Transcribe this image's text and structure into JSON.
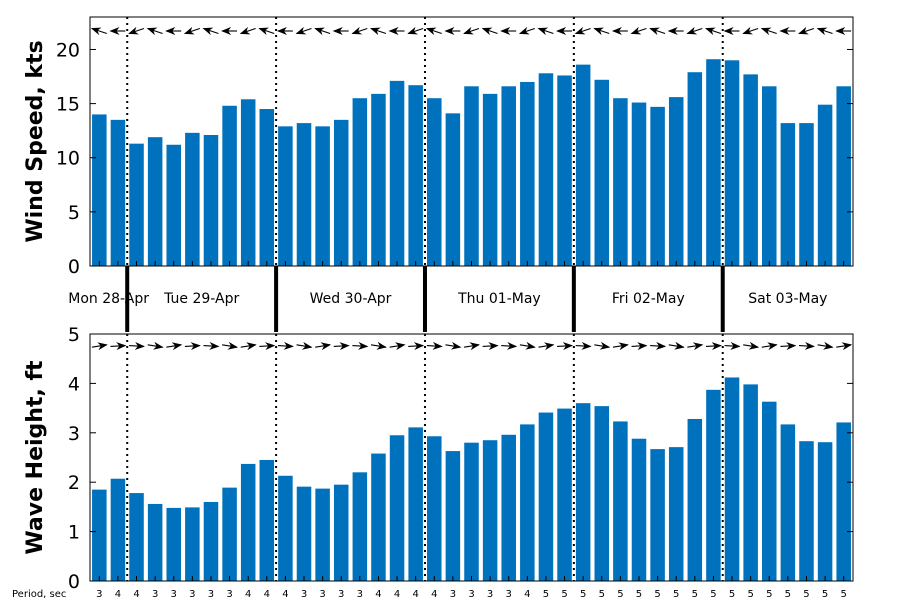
{
  "chart_data": [
    {
      "type": "bar",
      "panel": "wind",
      "ylabel": "Wind Speed, kts",
      "ylim": [
        0,
        23
      ],
      "yticks": [
        0,
        5,
        10,
        15,
        20
      ],
      "values": [
        14.0,
        13.5,
        11.3,
        11.9,
        11.2,
        12.3,
        12.1,
        14.8,
        15.4,
        14.5,
        12.9,
        13.2,
        12.9,
        13.5,
        15.5,
        15.9,
        17.1,
        16.7,
        15.5,
        14.1,
        16.6,
        15.9,
        16.6,
        17.0,
        17.8,
        17.6,
        18.6,
        17.2,
        15.5,
        15.1,
        14.7,
        15.6,
        17.9,
        19.1,
        19.0,
        17.7,
        16.6,
        13.2,
        13.2,
        14.9,
        16.6
      ],
      "direction_arrows": "from east, pointing west",
      "color": "#0072bd"
    },
    {
      "type": "bar",
      "panel": "wave",
      "ylabel": "Wave Height, ft",
      "ylim": [
        0,
        5
      ],
      "yticks": [
        0,
        1,
        2,
        3,
        4,
        5
      ],
      "values": [
        1.85,
        2.07,
        1.78,
        1.56,
        1.48,
        1.49,
        1.6,
        1.89,
        2.37,
        2.45,
        2.13,
        1.91,
        1.87,
        1.95,
        2.2,
        2.58,
        2.95,
        3.11,
        2.93,
        2.63,
        2.8,
        2.85,
        2.96,
        3.17,
        3.41,
        3.49,
        3.6,
        3.54,
        3.23,
        2.88,
        2.67,
        2.71,
        3.28,
        3.87,
        4.12,
        3.98,
        3.63,
        3.17,
        2.83,
        2.81,
        3.21
      ],
      "direction_arrows": "pointing east",
      "color": "#0072bd"
    }
  ],
  "days": [
    "Mon 28-Apr",
    "Tue 29-Apr",
    "Wed 30-Apr",
    "Thu 01-May",
    "Fri 02-May",
    "Sat 03-May"
  ],
  "period_label": "Period, sec",
  "periods": [
    "3",
    "4",
    "4",
    "3",
    "3",
    "3",
    "3",
    "3",
    "4",
    "4",
    "4",
    "3",
    "3",
    "3",
    "3",
    "4",
    "4",
    "4",
    "4",
    "3",
    "3",
    "3",
    "3",
    "4",
    "5",
    "5",
    "5",
    "5",
    "5",
    "5",
    "5",
    "5",
    "5",
    "5",
    "5",
    "5",
    "5",
    "5",
    "5",
    "5",
    "5"
  ]
}
